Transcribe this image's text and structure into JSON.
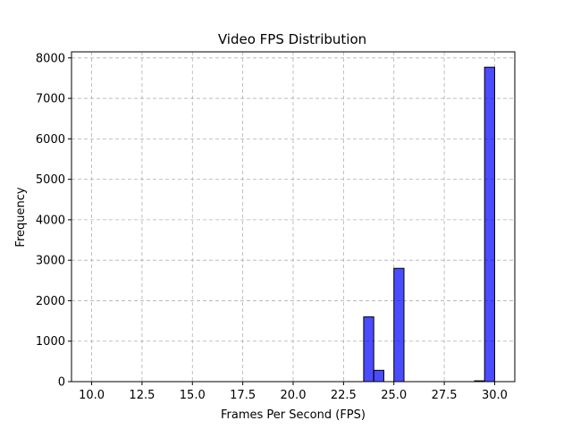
{
  "chart_data": {
    "type": "bar",
    "title": "Video FPS Distribution",
    "xlabel": "Frames Per Second (FPS)",
    "ylabel": "Frequency",
    "xlim": [
      9.0,
      31.0
    ],
    "ylim": [
      0,
      8150
    ],
    "grid": true,
    "xticks": [
      10.0,
      12.5,
      15.0,
      17.5,
      20.0,
      22.5,
      25.0,
      27.5,
      30.0
    ],
    "xtick_labels": [
      "10.0",
      "12.5",
      "15.0",
      "17.5",
      "20.0",
      "22.5",
      "25.0",
      "27.5",
      "30.0"
    ],
    "yticks": [
      0,
      1000,
      2000,
      3000,
      4000,
      5000,
      6000,
      7000,
      8000
    ],
    "ytick_labels": [
      "0",
      "1000",
      "2000",
      "3000",
      "4000",
      "5000",
      "6000",
      "7000",
      "8000"
    ],
    "bin_width": 0.5,
    "bins": [
      {
        "start": 23.5,
        "value": 1600
      },
      {
        "start": 24.0,
        "value": 280
      },
      {
        "start": 25.0,
        "value": 2800
      },
      {
        "start": 29.0,
        "value": 20
      },
      {
        "start": 29.5,
        "value": 7770
      }
    ],
    "bar_color": "#0000ff",
    "bar_opacity": 0.7,
    "edge_color": "#000000"
  }
}
